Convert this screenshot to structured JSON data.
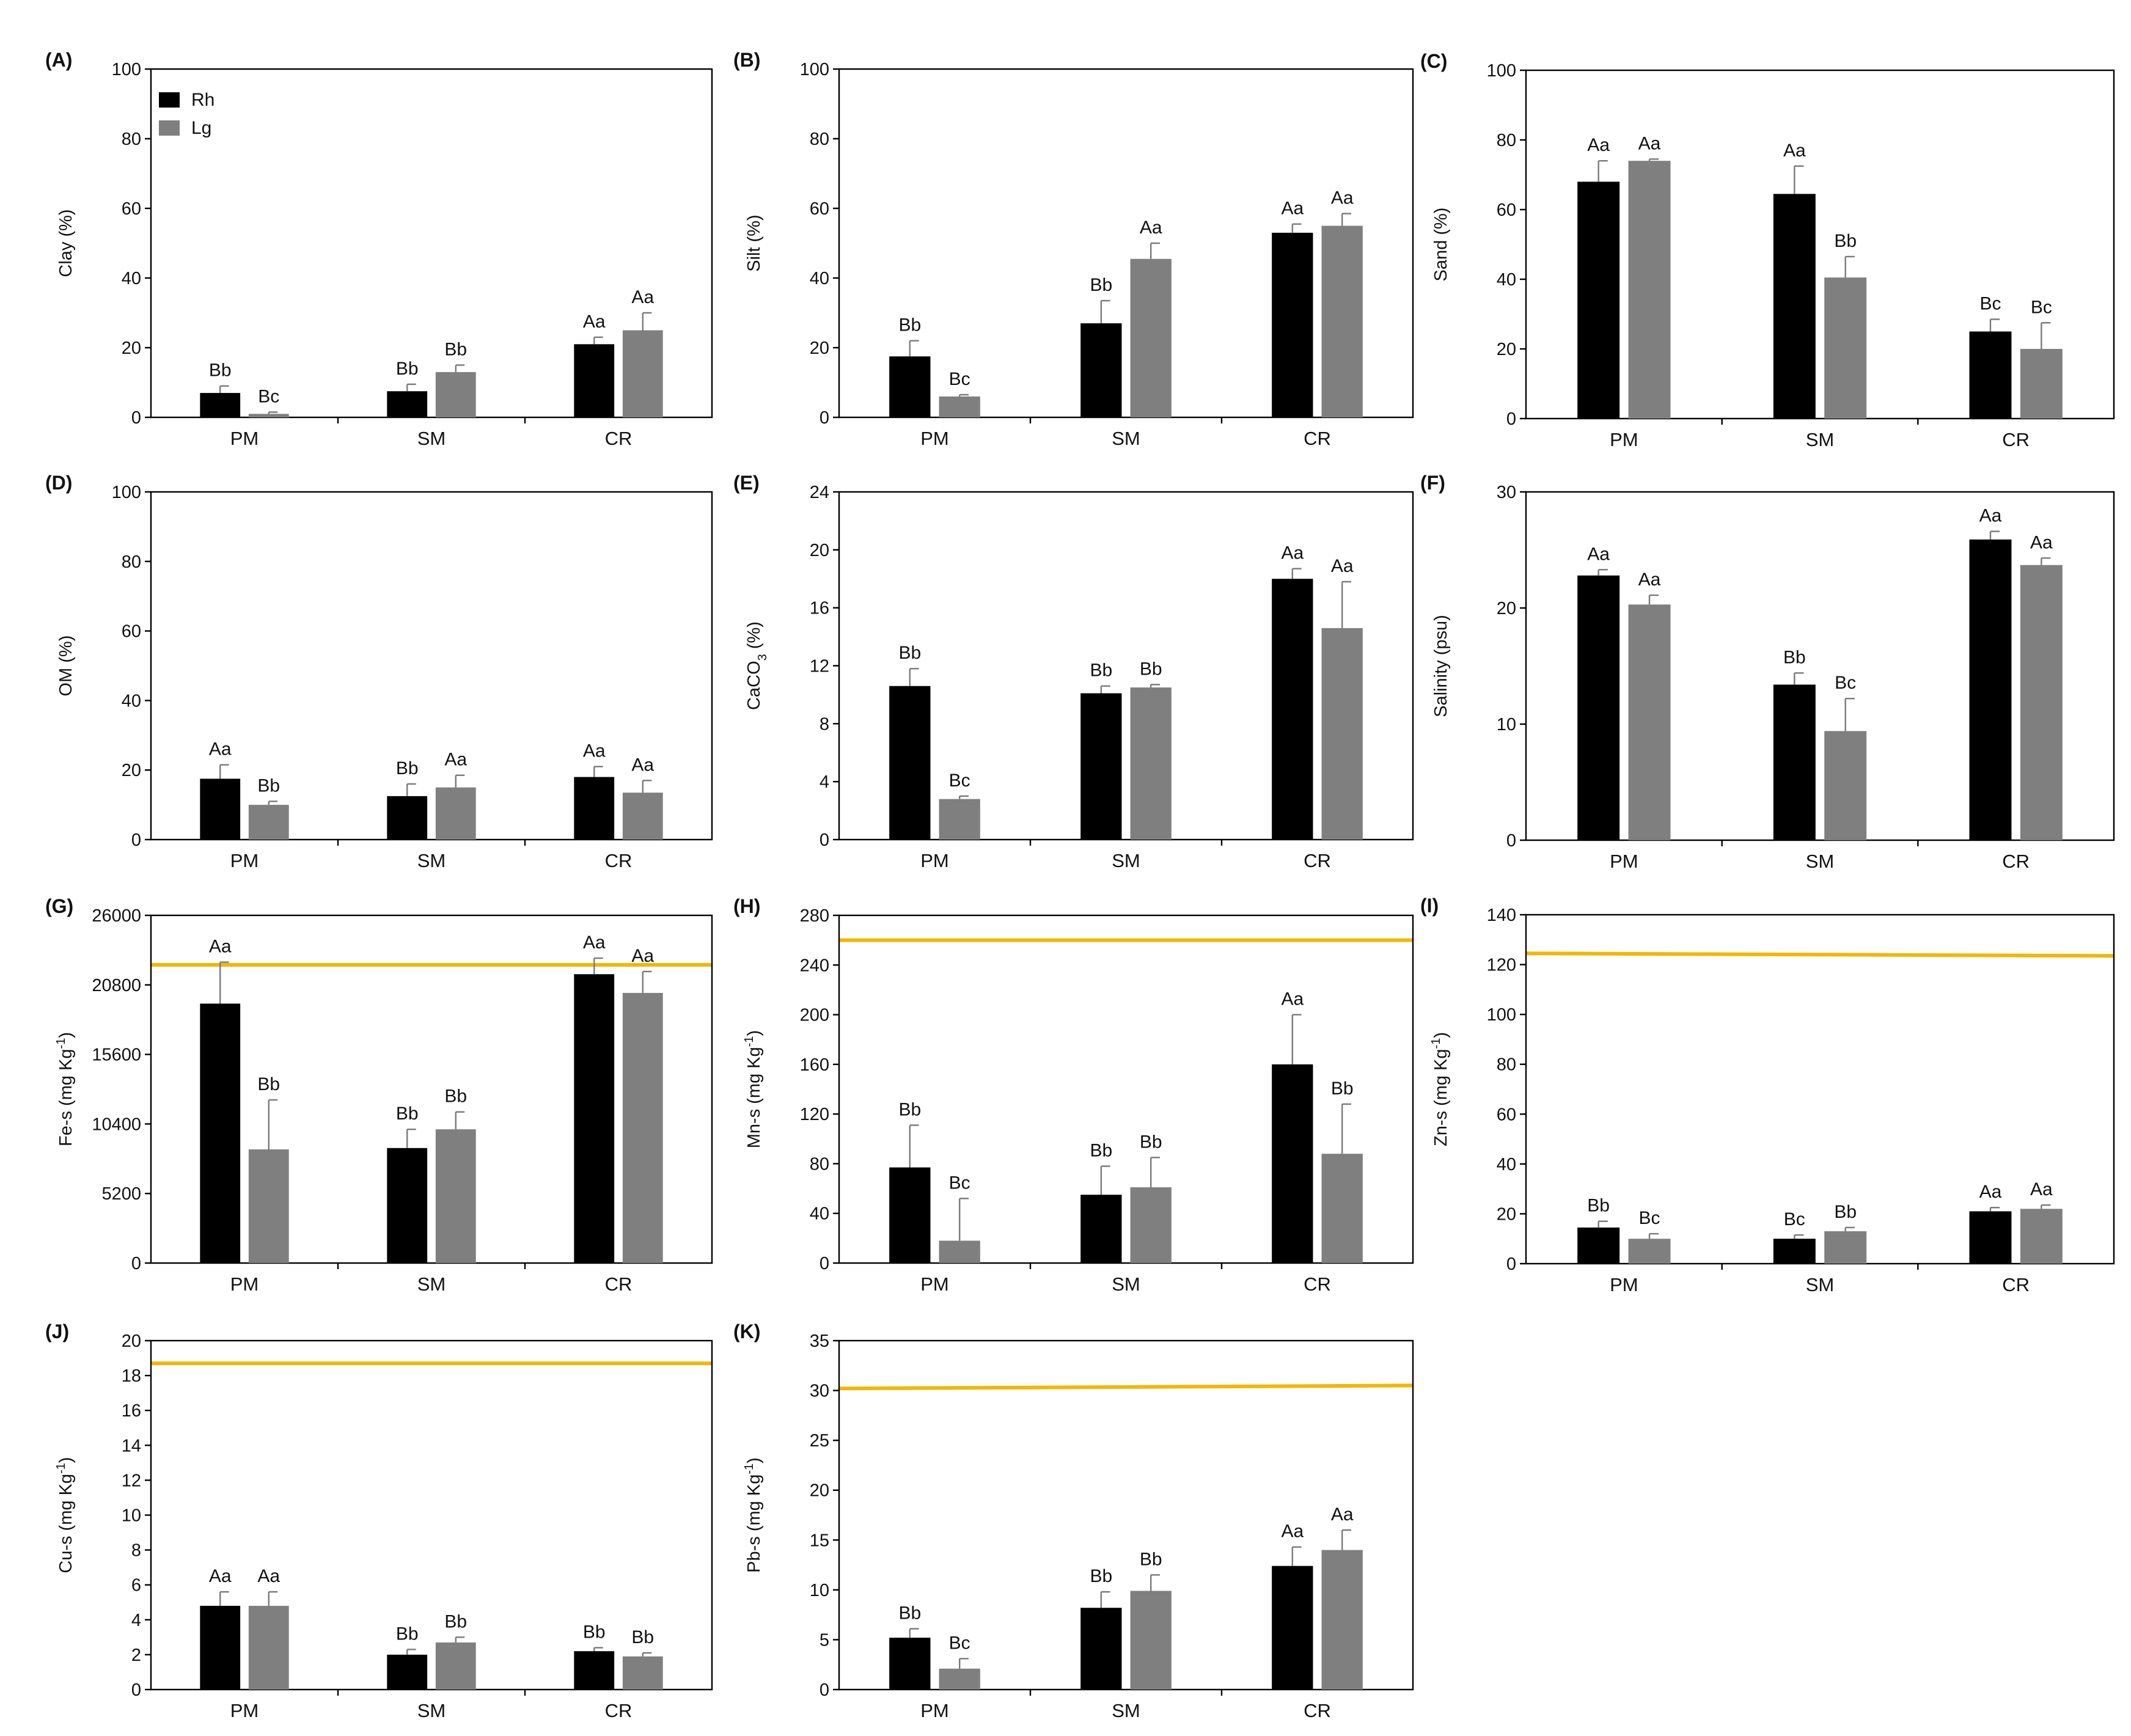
{
  "colors": {
    "Rh": "#000000",
    "Lg": "#7f7f7f",
    "reference_line": "#f2b705",
    "error_bar": "#7a7a7a"
  },
  "legend": [
    {
      "key": "Rh",
      "label": "Rh"
    },
    {
      "key": "Lg",
      "label": "Lg"
    }
  ],
  "chart_data": [
    {
      "type": "bar",
      "panel": "(A)",
      "ylabel": "Clay (%)",
      "ylim": [
        0,
        100
      ],
      "yticks": [
        "0",
        "20",
        "40",
        "60",
        "80",
        "100"
      ],
      "ytick_values": [
        0,
        20,
        40,
        60,
        80,
        100
      ],
      "categories": [
        "PM",
        "SM",
        "CR"
      ],
      "show_legend": true,
      "series": [
        {
          "name": "Rh",
          "values": [
            7,
            7.5,
            21
          ],
          "errors": [
            2,
            2,
            2
          ],
          "letters": [
            "Bb",
            "Bb",
            "Aa"
          ]
        },
        {
          "name": "Lg",
          "values": [
            1,
            13,
            25
          ],
          "errors": [
            0.5,
            2,
            5
          ],
          "letters": [
            "Bc",
            "Bb",
            "Aa"
          ]
        }
      ]
    },
    {
      "type": "bar",
      "panel": "(B)",
      "ylabel": "Silt (%)",
      "ylim": [
        0,
        100
      ],
      "yticks": [
        "0",
        "20",
        "40",
        "60",
        "80",
        "100"
      ],
      "ytick_values": [
        0,
        20,
        40,
        60,
        80,
        100
      ],
      "categories": [
        "PM",
        "SM",
        "CR"
      ],
      "series": [
        {
          "name": "Rh",
          "values": [
            17.5,
            27,
            53
          ],
          "errors": [
            4.5,
            6.5,
            2.5
          ],
          "letters": [
            "Bb",
            "Bb",
            "Aa"
          ]
        },
        {
          "name": "Lg",
          "values": [
            6,
            45.5,
            55
          ],
          "errors": [
            0.5,
            4.5,
            3.5
          ],
          "letters": [
            "Bc",
            "Aa",
            "Aa"
          ]
        }
      ]
    },
    {
      "type": "bar",
      "panel": "(C)",
      "ylabel": "Sand (%)",
      "ylim": [
        0,
        100
      ],
      "yticks": [
        "0",
        "20",
        "40",
        "60",
        "80",
        "100"
      ],
      "ytick_values": [
        0,
        20,
        40,
        60,
        80,
        100
      ],
      "categories": [
        "PM",
        "SM",
        "CR"
      ],
      "series": [
        {
          "name": "Rh",
          "values": [
            68,
            64.5,
            25
          ],
          "errors": [
            6,
            8,
            3.5
          ],
          "letters": [
            "Aa",
            "Aa",
            "Bc"
          ]
        },
        {
          "name": "Lg",
          "values": [
            74,
            40.5,
            20
          ],
          "errors": [
            0.5,
            6,
            7.5
          ],
          "letters": [
            "Aa",
            "Bb",
            "Bc"
          ]
        }
      ]
    },
    {
      "type": "bar",
      "panel": "(D)",
      "ylabel": "OM (%)",
      "ylim": [
        0,
        100
      ],
      "yticks": [
        "0",
        "20",
        "40",
        "60",
        "80",
        "100"
      ],
      "ytick_values": [
        0,
        20,
        40,
        60,
        80,
        100
      ],
      "categories": [
        "PM",
        "SM",
        "CR"
      ],
      "series": [
        {
          "name": "Rh",
          "values": [
            17.5,
            12.5,
            18
          ],
          "errors": [
            4,
            3.5,
            3
          ],
          "letters": [
            "Aa",
            "Bb",
            "Aa"
          ]
        },
        {
          "name": "Lg",
          "values": [
            10,
            15,
            13.5
          ],
          "errors": [
            1,
            3.5,
            3.5
          ],
          "letters": [
            "Bb",
            "Aa",
            "Aa"
          ]
        }
      ]
    },
    {
      "type": "bar",
      "panel": "(E)",
      "ylabel": "CaCO",
      "ylabel_sub": "3",
      "ylabel_tail": " (%)",
      "ylim": [
        0,
        24
      ],
      "yticks": [
        "0",
        "4",
        "8",
        "12",
        "16",
        "20",
        "24"
      ],
      "ytick_values": [
        0,
        4,
        8,
        12,
        16,
        20,
        24
      ],
      "categories": [
        "PM",
        "SM",
        "CR"
      ],
      "series": [
        {
          "name": "Rh",
          "values": [
            10.6,
            10.1,
            18
          ],
          "errors": [
            1.2,
            0.5,
            0.7
          ],
          "letters": [
            "Bb",
            "Bb",
            "Aa"
          ]
        },
        {
          "name": "Lg",
          "values": [
            2.8,
            10.5,
            14.6
          ],
          "errors": [
            0.2,
            0.2,
            3.2
          ],
          "letters": [
            "Bc",
            "Bb",
            "Aa"
          ]
        }
      ]
    },
    {
      "type": "bar",
      "panel": "(F)",
      "ylabel": "Salinity (psu)",
      "ylim": [
        0,
        30
      ],
      "yticks": [
        "0",
        "10",
        "20",
        "30"
      ],
      "ytick_values": [
        0,
        10,
        20,
        30
      ],
      "categories": [
        "PM",
        "SM",
        "CR"
      ],
      "series": [
        {
          "name": "Rh",
          "values": [
            22.8,
            13.4,
            25.9
          ],
          "errors": [
            0.5,
            1,
            0.7
          ],
          "letters": [
            "Aa",
            "Bb",
            "Aa"
          ]
        },
        {
          "name": "Lg",
          "values": [
            20.3,
            9.4,
            23.7
          ],
          "errors": [
            0.8,
            2.8,
            0.6
          ],
          "letters": [
            "Aa",
            "Bc",
            "Aa"
          ]
        }
      ]
    },
    {
      "type": "bar",
      "panel": "(G)",
      "ylabel": "Fe-s (mg Kg",
      "ylabel_sup": "-1",
      "ylabel_tail": ")",
      "ylim": [
        0,
        26000
      ],
      "yticks": [
        "0",
        "5200",
        "10400",
        "15600",
        "20800",
        "26000"
      ],
      "ytick_values": [
        0,
        5200,
        10400,
        15600,
        20800,
        26000
      ],
      "categories": [
        "PM",
        "SM",
        "CR"
      ],
      "reference_line": [
        22300,
        22300
      ],
      "series": [
        {
          "name": "Rh",
          "values": [
            19400,
            8600,
            21600
          ],
          "errors": [
            3100,
            1400,
            1200
          ],
          "letters": [
            "Aa",
            "Bb",
            "Aa"
          ]
        },
        {
          "name": "Lg",
          "values": [
            8500,
            10000,
            20200
          ],
          "errors": [
            3700,
            1300,
            1600
          ],
          "letters": [
            "Bb",
            "Bb",
            "Aa"
          ]
        }
      ]
    },
    {
      "type": "bar",
      "panel": "(H)",
      "ylabel": "Mn-s (mg Kg",
      "ylabel_sup": "-1",
      "ylabel_tail": ")",
      "ylim": [
        0,
        280
      ],
      "yticks": [
        "0",
        "40",
        "80",
        "120",
        "160",
        "200",
        "240",
        "280"
      ],
      "ytick_values": [
        0,
        40,
        80,
        120,
        160,
        200,
        240,
        280
      ],
      "categories": [
        "PM",
        "SM",
        "CR"
      ],
      "reference_line": [
        260,
        260
      ],
      "series": [
        {
          "name": "Rh",
          "values": [
            77,
            55,
            160
          ],
          "errors": [
            34,
            23,
            40
          ],
          "letters": [
            "Bb",
            "Bb",
            "Aa"
          ]
        },
        {
          "name": "Lg",
          "values": [
            18,
            61,
            88
          ],
          "errors": [
            34,
            24,
            40
          ],
          "letters": [
            "Bc",
            "Bb",
            "Bb"
          ]
        }
      ]
    },
    {
      "type": "bar",
      "panel": "(I)",
      "ylabel": "Zn-s (mg Kg",
      "ylabel_sup": "-1",
      "ylabel_tail": ")",
      "ylim": [
        0,
        140
      ],
      "yticks": [
        "0",
        "20",
        "40",
        "60",
        "80",
        "100",
        "120",
        "140"
      ],
      "ytick_values": [
        0,
        20,
        40,
        60,
        80,
        100,
        120,
        140
      ],
      "categories": [
        "PM",
        "SM",
        "CR"
      ],
      "reference_line": [
        124.5,
        123.5
      ],
      "series": [
        {
          "name": "Rh",
          "values": [
            14.5,
            10,
            21
          ],
          "errors": [
            2.5,
            1.5,
            1.5
          ],
          "letters": [
            "Bb",
            "Bc",
            "Aa"
          ]
        },
        {
          "name": "Lg",
          "values": [
            10,
            13,
            22
          ],
          "errors": [
            2,
            1.5,
            1.5
          ],
          "letters": [
            "Bc",
            "Bb",
            "Aa"
          ]
        }
      ]
    },
    {
      "type": "bar",
      "panel": "(J)",
      "ylabel": "Cu-s (mg Kg",
      "ylabel_sup": "-1",
      "ylabel_tail": ")",
      "ylim": [
        0,
        20
      ],
      "yticks": [
        "0",
        "2",
        "4",
        "6",
        "8",
        "10",
        "12",
        "14",
        "16",
        "18",
        "20"
      ],
      "ytick_values": [
        0,
        2,
        4,
        6,
        8,
        10,
        12,
        14,
        16,
        18,
        20
      ],
      "categories": [
        "PM",
        "SM",
        "CR"
      ],
      "reference_line": [
        18.7,
        18.7
      ],
      "series": [
        {
          "name": "Rh",
          "values": [
            4.8,
            2.0,
            2.2
          ],
          "errors": [
            0.8,
            0.3,
            0.2
          ],
          "letters": [
            "Aa",
            "Bb",
            "Bb"
          ]
        },
        {
          "name": "Lg",
          "values": [
            4.8,
            2.7,
            1.9
          ],
          "errors": [
            0.8,
            0.3,
            0.2
          ],
          "letters": [
            "Aa",
            "Bb",
            "Bb"
          ]
        }
      ]
    },
    {
      "type": "bar",
      "panel": "(K)",
      "ylabel": "Pb-s (mg Kg",
      "ylabel_sup": "-1",
      "ylabel_tail": ")",
      "ylim": [
        0,
        35
      ],
      "yticks": [
        "0",
        "5",
        "10",
        "15",
        "20",
        "25",
        "30",
        "35"
      ],
      "ytick_values": [
        0,
        5,
        10,
        15,
        20,
        25,
        30,
        35
      ],
      "categories": [
        "PM",
        "SM",
        "CR"
      ],
      "reference_line": [
        30.2,
        30.5
      ],
      "series": [
        {
          "name": "Rh",
          "values": [
            5.2,
            8.2,
            12.4
          ],
          "errors": [
            0.9,
            1.6,
            1.9
          ],
          "letters": [
            "Bb",
            "Bb",
            "Aa"
          ]
        },
        {
          "name": "Lg",
          "values": [
            2.1,
            9.9,
            14.0
          ],
          "errors": [
            1.0,
            1.6,
            2.0
          ],
          "letters": [
            "Bc",
            "Bb",
            "Aa"
          ]
        }
      ]
    }
  ]
}
